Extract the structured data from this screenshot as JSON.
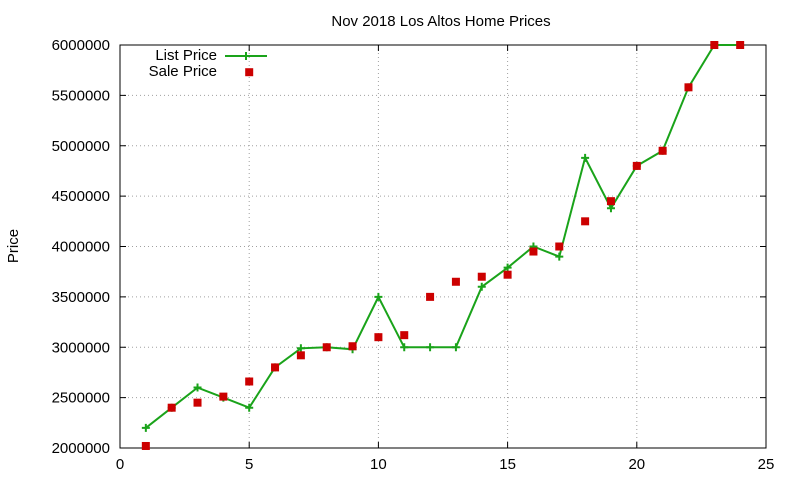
{
  "chart_data": {
    "type": "line",
    "title": "Nov 2018 Los Altos Home Prices",
    "xlabel": "",
    "ylabel": "Price",
    "xlim": [
      0,
      25
    ],
    "ylim": [
      2000000,
      6000000
    ],
    "x_ticks": [
      "0",
      "5",
      "10",
      "15",
      "20",
      "25"
    ],
    "y_ticks": [
      "2000000",
      "2500000",
      "3000000",
      "3500000",
      "4000000",
      "4500000",
      "5000000",
      "5500000",
      "6000000"
    ],
    "grid": true,
    "legend_position": "top-left",
    "series": [
      {
        "name": "List Price",
        "style": "line+cross",
        "color": "#1aa31a",
        "points": [
          [
            1,
            2200000
          ],
          [
            2,
            2400000
          ],
          [
            3,
            2600000
          ],
          [
            4,
            2500000
          ],
          [
            5,
            2400000
          ],
          [
            6,
            2800000
          ],
          [
            7,
            2990000
          ],
          [
            8,
            3000000
          ],
          [
            9,
            2980000
          ],
          [
            10,
            3500000
          ],
          [
            11,
            3000000
          ],
          [
            12,
            3000000
          ],
          [
            13,
            3000000
          ],
          [
            14,
            3600000
          ],
          [
            15,
            3790000
          ],
          [
            16,
            4000000
          ],
          [
            17,
            3900000
          ],
          [
            18,
            4880000
          ],
          [
            19,
            4380000
          ],
          [
            20,
            4800000
          ],
          [
            21,
            4950000
          ],
          [
            22,
            5580000
          ],
          [
            23,
            6000000
          ],
          [
            24,
            6000000
          ]
        ]
      },
      {
        "name": "Sale Price",
        "style": "square",
        "color": "#cc0000",
        "points": [
          [
            1,
            2020000
          ],
          [
            2,
            2400000
          ],
          [
            3,
            2450000
          ],
          [
            4,
            2510000
          ],
          [
            5,
            2660000
          ],
          [
            6,
            2800000
          ],
          [
            7,
            2920000
          ],
          [
            8,
            3000000
          ],
          [
            9,
            3010000
          ],
          [
            10,
            3100000
          ],
          [
            11,
            3120000
          ],
          [
            12,
            3500000
          ],
          [
            13,
            3650000
          ],
          [
            14,
            3700000
          ],
          [
            15,
            3720000
          ],
          [
            16,
            3950000
          ],
          [
            17,
            4000000
          ],
          [
            18,
            4250000
          ],
          [
            19,
            4450000
          ],
          [
            20,
            4800000
          ],
          [
            21,
            4950000
          ],
          [
            22,
            5580000
          ],
          [
            23,
            6000000
          ],
          [
            24,
            6000000
          ]
        ]
      }
    ],
    "legend_extra_points": [
      {
        "series": "Sale Price",
        "x": 5,
        "y": 5730000
      }
    ]
  }
}
